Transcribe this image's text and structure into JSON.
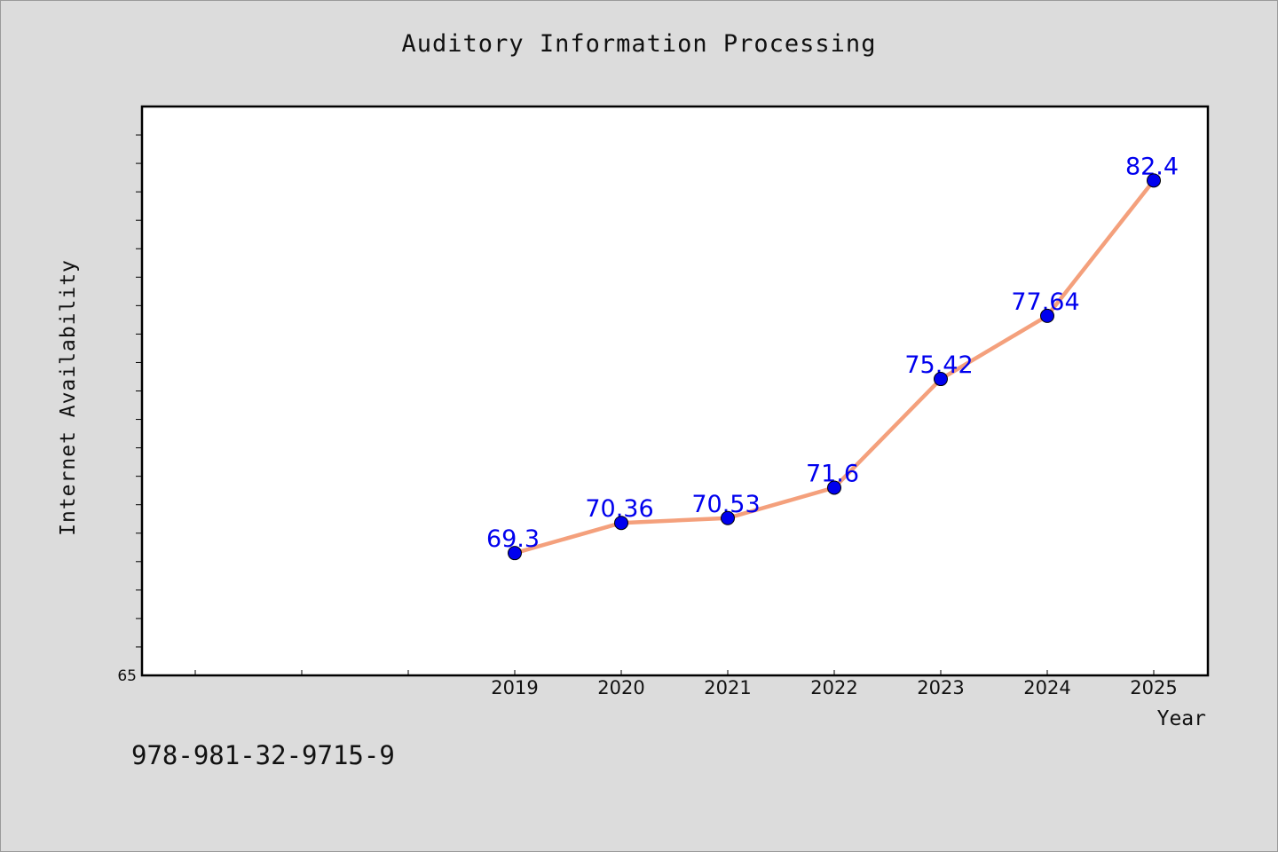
{
  "chart_title": "Auditory Information Processing",
  "isbn_text": "978-981-32-9715-9",
  "chart_data": {
    "type": "line",
    "title": "Auditory Information Processing",
    "xlabel": "Year",
    "ylabel": "Internet Availability",
    "categories": [
      "2019",
      "2020",
      "2021",
      "2022",
      "2023",
      "2024",
      "2025"
    ],
    "values": [
      69.3,
      70.36,
      70.53,
      71.6,
      75.42,
      77.64,
      82.4
    ],
    "data_labels": [
      "69.3",
      "70.36",
      "70.53",
      "71.6",
      "75.42",
      "77.64",
      "82.4"
    ],
    "ylim": [
      65,
      85
    ],
    "y_tick_labels": [
      "65"
    ],
    "grid": false,
    "line_color": "#f4a07c",
    "marker_color": "#0000ee",
    "label_color": "#0000ee"
  }
}
